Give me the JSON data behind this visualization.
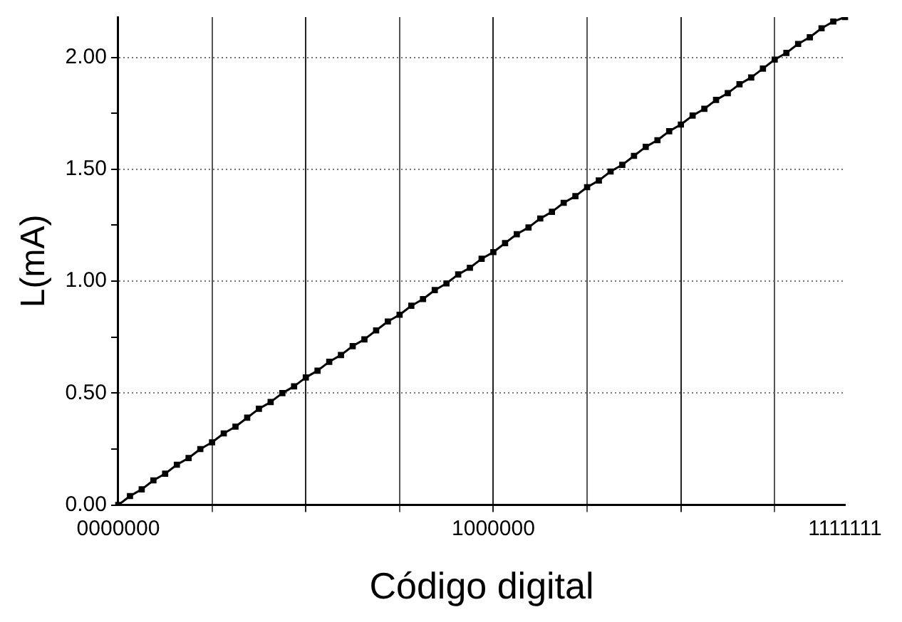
{
  "chart_data": {
    "type": "line",
    "xlabel": "Código digital",
    "ylabel": "L(mA)",
    "categories": [
      "0000000",
      null,
      null,
      null,
      null,
      null,
      null,
      null,
      null,
      null,
      null,
      null,
      null,
      null,
      null,
      null,
      null,
      null,
      null,
      null,
      null,
      null,
      null,
      null,
      null,
      null,
      null,
      null,
      null,
      null,
      null,
      null,
      "1000000",
      null,
      null,
      null,
      null,
      null,
      null,
      null,
      null,
      null,
      null,
      null,
      null,
      null,
      null,
      null,
      null,
      null,
      null,
      null,
      null,
      null,
      null,
      null,
      null,
      null,
      null,
      null,
      null,
      null,
      "1111111"
    ],
    "series": [
      {
        "color": "#000000",
        "values": [
          0,
          0.04,
          0.07,
          0.11,
          0.14,
          0.18,
          0.21,
          0.25,
          0.28,
          0.32,
          0.35,
          0.39,
          0.43,
          0.46,
          0.5,
          0.53,
          0.57,
          0.6,
          0.64,
          0.67,
          0.71,
          0.74,
          0.78,
          0.82,
          0.85,
          0.89,
          0.92,
          0.96,
          0.99,
          1.03,
          1.06,
          1.1,
          1.13,
          1.17,
          1.21,
          1.24,
          1.28,
          1.31,
          1.35,
          1.38,
          1.42,
          1.45,
          1.49,
          1.52,
          1.56,
          1.6,
          1.63,
          1.67,
          1.7,
          1.74,
          1.77,
          1.81,
          1.84,
          1.88,
          1.91,
          1.95,
          1.99,
          2.02,
          2.06,
          2.09,
          2.13,
          2.16,
          2.18
        ]
      }
    ],
    "ylim": [
      0,
      2.18
    ],
    "yticks": [
      {
        "value": 0,
        "label": "0.00"
      },
      {
        "value": 0.25,
        "label": null
      },
      {
        "value": 0.5,
        "label": "0.50"
      },
      {
        "value": 0.75,
        "label": null
      },
      {
        "value": 1,
        "label": "1.00"
      },
      {
        "value": 1.25,
        "label": null
      },
      {
        "value": 1.5,
        "label": "1.50"
      },
      {
        "value": 1.75,
        "label": null
      },
      {
        "value": 2,
        "label": "2.00"
      }
    ],
    "grid": true,
    "legend": false,
    "marker": "square",
    "line_style": "solid"
  }
}
